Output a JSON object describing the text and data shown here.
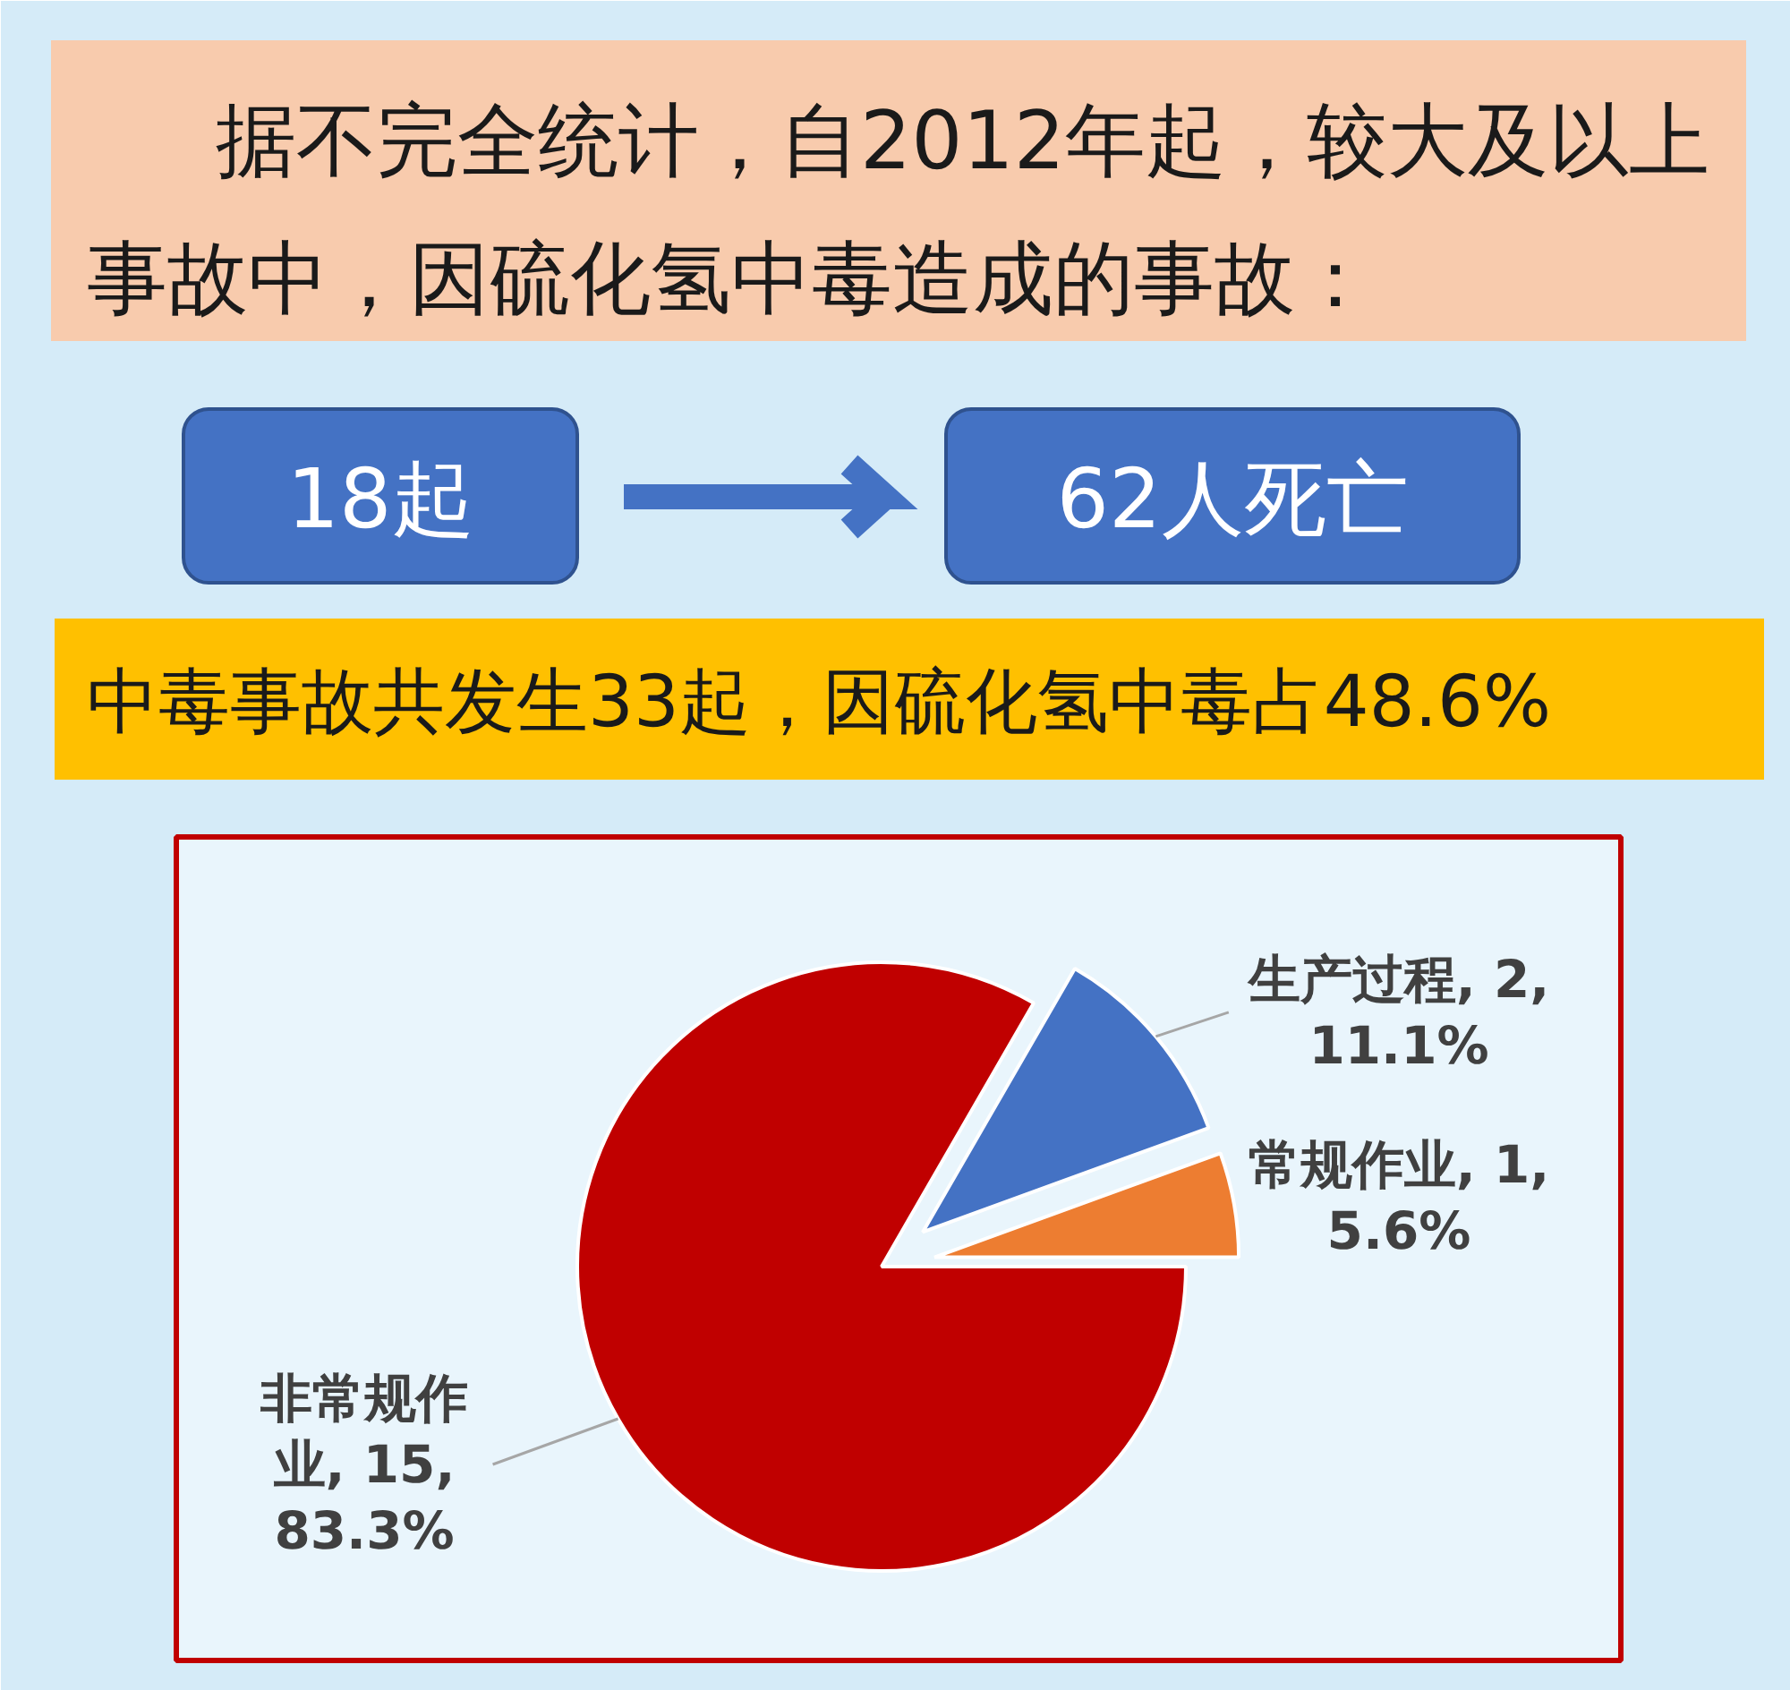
{
  "chart_data": {
    "type": "pie",
    "title": "据不完全统计，自2012年起，较大及以上事故中，因硫化氢中毒造成的事故：",
    "annotations": [
      "18起",
      "62人死亡",
      "中毒事故共发生33起，因硫化氢中毒占48.6%"
    ],
    "categories": [
      "生产过程",
      "常规作业",
      "非常规作业"
    ],
    "values": [
      2,
      1,
      15
    ],
    "colors": [
      "#4472c4",
      "#ed7d31",
      "#c00000"
    ],
    "value_labels": [
      "2, 11.1%",
      "1, 5.6%",
      "15, 83.3%"
    ]
  }
}
